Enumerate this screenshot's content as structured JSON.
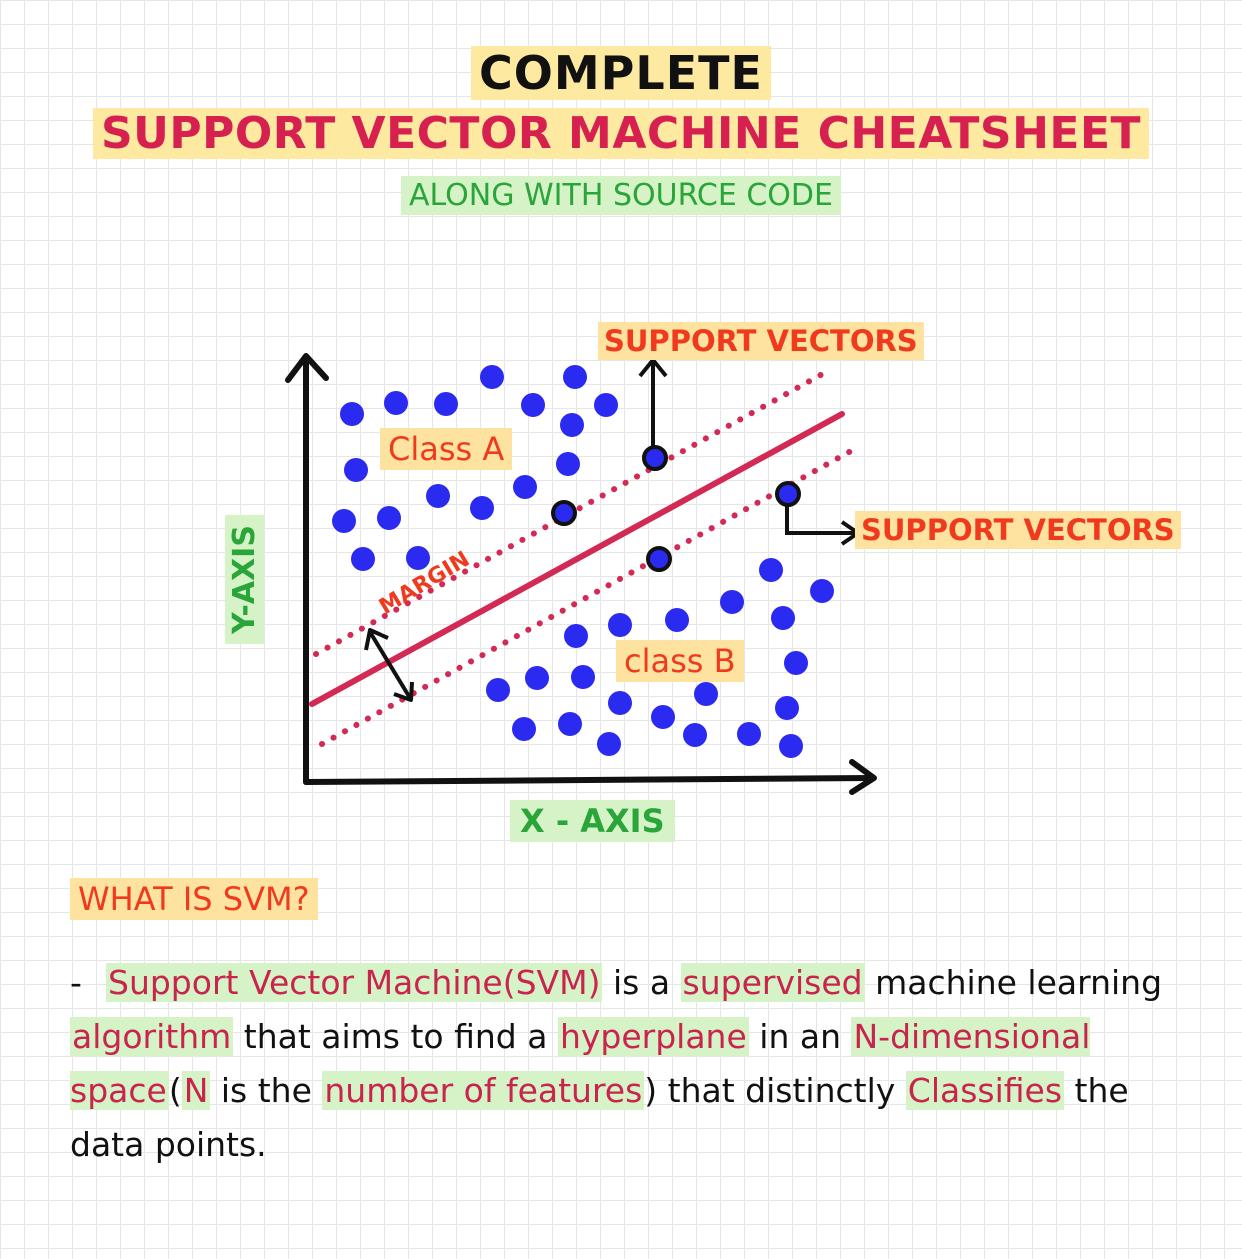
{
  "header": {
    "title_top": "COMPLETE",
    "title_main": "SUPPORT VECTOR MACHINE CHEATSHEET",
    "subtitle": "ALONG WITH SOURCE CODE"
  },
  "diagram": {
    "support_vectors_top": "SUPPORT VECTORS",
    "support_vectors_right": "SUPPORT VECTORS",
    "class_a": "Class A",
    "class_b": "class B",
    "margin": "MARGIN",
    "x_axis": "X - AXIS",
    "y_axis": "Y-AXIS",
    "colors": {
      "points": "#2a2af0",
      "hyperplane": "#d22a55",
      "label_text": "#f03a1e",
      "axis_label": "#2aa53a"
    }
  },
  "section": {
    "heading": "WHAT IS SVM?",
    "dash": "-",
    "definition": [
      {
        "t": "Support Vector Machine(SVM)",
        "hl": true
      },
      {
        "t": " is a ",
        "hl": false
      },
      {
        "t": "supervised",
        "hl": true
      },
      {
        "t": " machine learning ",
        "hl": false
      },
      {
        "t": "algorithm",
        "hl": true
      },
      {
        "t": " that aims to find a ",
        "hl": false
      },
      {
        "t": "hyperplane",
        "hl": true
      },
      {
        "t": " in an ",
        "hl": false
      },
      {
        "t": "N-dimensional space",
        "hl": true
      },
      {
        "t": "(",
        "hl": false
      },
      {
        "t": "N",
        "hl": true
      },
      {
        "t": " is the ",
        "hl": false
      },
      {
        "t": "number of features",
        "hl": true
      },
      {
        "t": ") that distinctly ",
        "hl": false
      },
      {
        "t": "Classifies",
        "hl": true
      },
      {
        "t": " the data points.",
        "hl": false
      }
    ]
  }
}
